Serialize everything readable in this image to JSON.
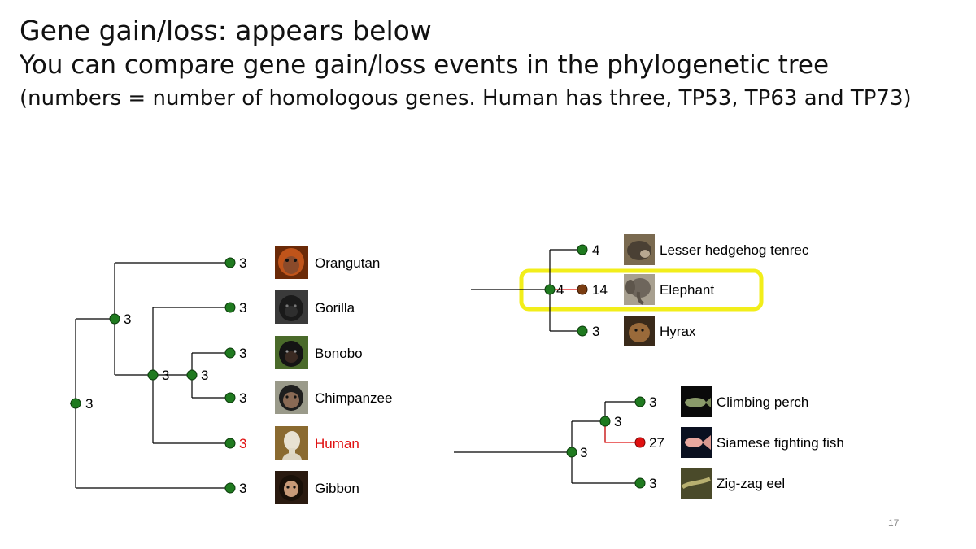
{
  "slide": {
    "title_line1": "Gene gain/loss: appears below",
    "title_line2": "You can compare gene gain/loss events in the phylogenetic tree",
    "title_line3": "(numbers = number of homologous genes. Human has three, TP53, TP63 and TP73)",
    "slide_number": "17"
  },
  "colors": {
    "node_normal": "#1f7a1f",
    "node_gain_moderate": "#7a3d12",
    "node_gain_high": "#e01010",
    "branch_gain": "#e01010",
    "human_label": "#e01010",
    "highlight_box": "#f2ee1a"
  },
  "primate_tree": {
    "leaves": [
      {
        "name": "Orangutan",
        "count": "3",
        "photo": "orangutan-photo"
      },
      {
        "name": "Gorilla",
        "count": "3",
        "photo": "gorilla-photo"
      },
      {
        "name": "Bonobo",
        "count": "3",
        "photo": "bonobo-photo"
      },
      {
        "name": "Chimpanzee",
        "count": "3",
        "photo": "chimpanzee-photo"
      },
      {
        "name": "Human",
        "count": "3",
        "photo": "human-statue-photo",
        "highlight": true
      },
      {
        "name": "Gibbon",
        "count": "3",
        "photo": "gibbon-photo"
      }
    ],
    "internal_nodes": [
      "3",
      "3",
      "3",
      "3"
    ]
  },
  "afrotheria_tree": {
    "leaves": [
      {
        "name": "Lesser hedgehog tenrec",
        "count": "4",
        "photo": "tenrec-photo"
      },
      {
        "name": "Elephant",
        "count": "14",
        "photo": "elephant-photo",
        "gain": true
      },
      {
        "name": "Hyrax",
        "count": "3",
        "photo": "hyrax-photo"
      }
    ],
    "root_count": "4"
  },
  "fish_tree": {
    "leaves": [
      {
        "name": "Climbing perch",
        "count": "3",
        "photo": "perch-photo"
      },
      {
        "name": "Siamese fighting fish",
        "count": "27",
        "photo": "fighting-fish-photo",
        "gain": true
      },
      {
        "name": "Zig-zag eel",
        "count": "3",
        "photo": "eel-photo"
      }
    ],
    "internal_nodes": [
      "3",
      "3"
    ]
  }
}
